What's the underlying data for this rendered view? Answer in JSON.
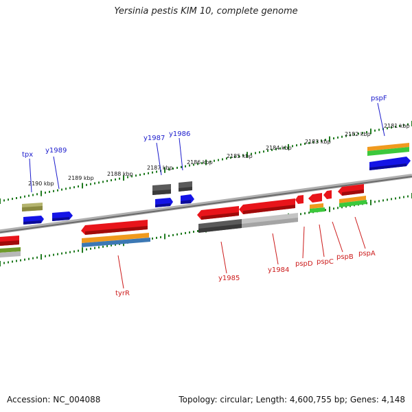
{
  "title": "Yersinia pestis KIM 10, complete genome",
  "footer": {
    "accession": "Accession: NC_004088",
    "topology": "Topology: circular; Length: 4,600,755 bp; Genes: 4,148"
  },
  "colors": {
    "backbone": "#8c8c8c",
    "tick": "#1f7a1f",
    "forward_label": "#1a1acc",
    "reverse_label": "#cc1a1a",
    "gene_red": "#e8141a",
    "gene_blue": "#1414e6",
    "gene_gray": "#5a5a5a",
    "gene_lightgray": "#b8b8b8",
    "gene_olive": "#b4b46e",
    "orange": "#f09a1e",
    "green": "#3cc83c",
    "steelblue": "#3c78b4"
  },
  "kbp_labels": [
    "2190 kbp",
    "2189 kbp",
    "2188 kbp",
    "2187 kbp",
    "2186 kbp",
    "2185 kbp",
    "2184 kbp",
    "2183 kbp",
    "2182 kbp",
    "2181 kbp"
  ],
  "forward_genes": [
    "tpx",
    "y1989",
    "y1987",
    "y1986",
    "pspF"
  ],
  "reverse_genes": [
    "tyrR",
    "y1985",
    "y1984",
    "pspD",
    "pspC",
    "pspB",
    "pspA"
  ]
}
